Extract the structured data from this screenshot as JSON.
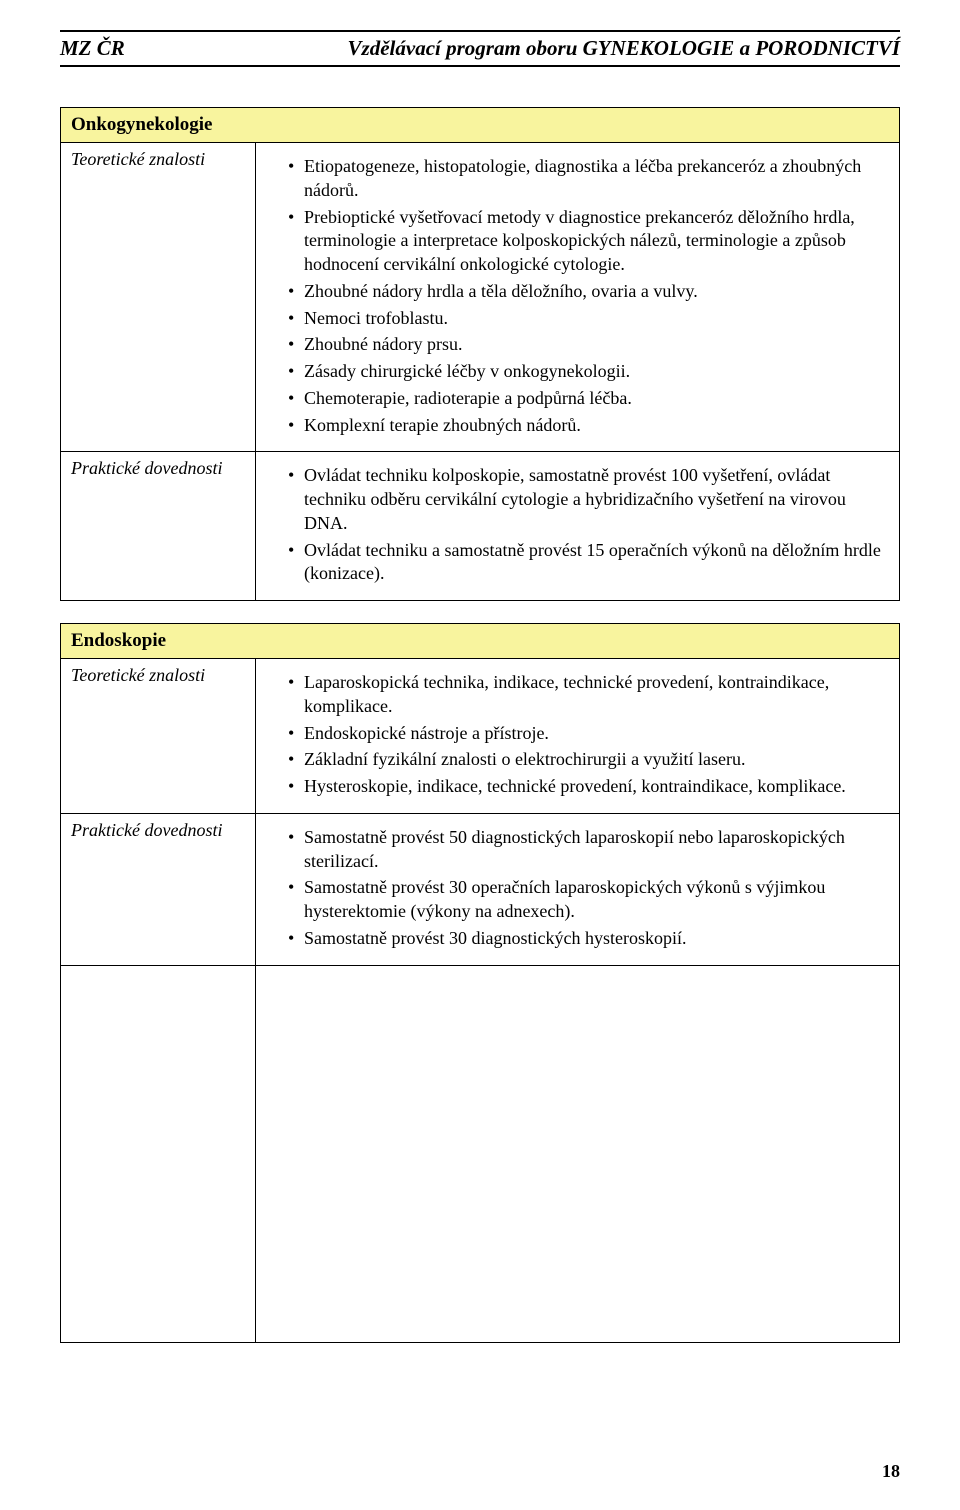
{
  "header": {
    "left": "MZ ČR",
    "right": "Vzdělávací program oboru GYNEKOLOGIE a PORODNICTVÍ"
  },
  "colors": {
    "section_header_bg": "#f8f49e",
    "border": "#000000",
    "text": "#000000",
    "page_bg": "#ffffff"
  },
  "sections": [
    {
      "title": "Onkogynekologie",
      "rows": [
        {
          "label": "Teoretické znalosti",
          "items": [
            "Etiopatogeneze, histopatologie, diagnostika a léčba prekanceróz a zhoubných nádorů.",
            "Prebioptické vyšetřovací metody v diagnostice prekanceróz děložního hrdla, terminologie a interpretace kolposkopických nálezů, terminologie a způsob hodnocení cervikální onkologické cytologie.",
            "Zhoubné nádory hrdla a těla děložního, ovaria a vulvy.",
            "Nemoci trofoblastu.",
            "Zhoubné nádory prsu.",
            "Zásady chirurgické léčby v onkogynekologii.",
            "Chemoterapie, radioterapie a podpůrná léčba.",
            "Komplexní terapie zhoubných nádorů."
          ]
        },
        {
          "label": "Praktické dovednosti",
          "items": [
            "Ovládat techniku kolposkopie, samostatně provést 100 vyšetření, ovládat techniku odběru cervikální cytologie a hybridizačního vyšetření na virovou DNA.",
            "Ovládat techniku a samostatně provést 15 operačních výkonů na děložním hrdle (konizace)."
          ]
        }
      ]
    },
    {
      "title": "Endoskopie",
      "rows": [
        {
          "label": "Teoretické znalosti",
          "items": [
            "Laparoskopická technika, indikace, technické provedení, kontraindikace, komplikace.",
            "Endoskopické nástroje a přístroje.",
            "Základní fyzikální znalosti o elektrochirurgii a využití laseru.",
            "Hysteroskopie, indikace, technické provedení, kontraindikace, komplikace."
          ]
        },
        {
          "label": "Praktické dovednosti",
          "items": [
            "Samostatně provést 50 diagnostických laparoskopií nebo laparoskopických sterilizací.",
            "Samostatně provést 30 operačních laparoskopických výkonů s výjimkou hysterektomie (výkony na adnexech).",
            "Samostatně provést 30 diagnostických hysteroskopií."
          ]
        }
      ],
      "has_spacer_row": true
    }
  ],
  "page_number": "18"
}
